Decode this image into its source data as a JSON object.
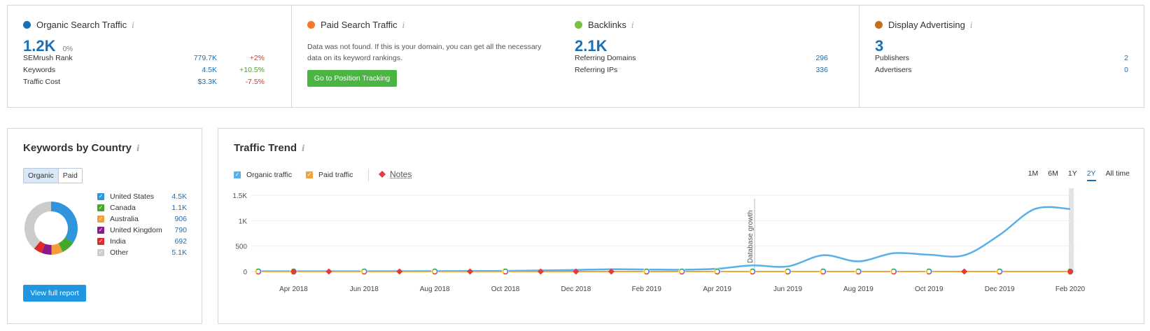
{
  "organic": {
    "title": "Organic Search Traffic",
    "value": "1.2K",
    "change": "0%",
    "rows": [
      {
        "label": "SEMrush Rank",
        "value": "779.7K",
        "change": "+2%",
        "dir": "down"
      },
      {
        "label": "Keywords",
        "value": "4.5K",
        "change": "+10.5%",
        "dir": "up"
      },
      {
        "label": "Traffic Cost",
        "value": "$3.3K",
        "change": "-7.5%",
        "dir": "down"
      }
    ]
  },
  "paid": {
    "title": "Paid Search Traffic",
    "message": "Data was not found. If this is your domain, you can get all the necessary data on its keyword rankings.",
    "button": "Go to Position Tracking"
  },
  "backlinks": {
    "title": "Backlinks",
    "value": "2.1K",
    "rows": [
      {
        "label": "Referring Domains",
        "value": "296"
      },
      {
        "label": "Referring IPs",
        "value": "336"
      }
    ]
  },
  "display": {
    "title": "Display Advertising",
    "value": "3",
    "rows": [
      {
        "label": "Publishers",
        "value": "2"
      },
      {
        "label": "Advertisers",
        "value": "0"
      }
    ]
  },
  "info_glyph": "i",
  "colors": {
    "organic_dot": "#1a6fb5",
    "paid_dot": "#f5792a",
    "backlinks_dot": "#76c043",
    "display_dot": "#c0701a",
    "organic_line": "#59b0e8",
    "paid_line": "#f1a43c",
    "notes": "#e33a3a"
  },
  "kbc": {
    "title": "Keywords by Country",
    "tabs": [
      "Organic",
      "Paid"
    ],
    "active_tab": "Organic",
    "countries": [
      {
        "name": "United States",
        "value": "4.5K",
        "share": 4500,
        "color": "#2f95dc"
      },
      {
        "name": "Canada",
        "value": "1.1K",
        "share": 1100,
        "color": "#43a82c"
      },
      {
        "name": "Australia",
        "value": "906",
        "share": 906,
        "color": "#f39c38"
      },
      {
        "name": "United Kingdom",
        "value": "790",
        "share": 790,
        "color": "#8a1a8c"
      },
      {
        "name": "India",
        "value": "692",
        "share": 692,
        "color": "#df2a2a"
      },
      {
        "name": "Other",
        "value": "5.1K",
        "share": 5100,
        "color": "#cccccc"
      }
    ],
    "button": "View full report"
  },
  "trend": {
    "title": "Traffic Trend",
    "legend": {
      "organic": "Organic traffic",
      "paid": "Paid traffic",
      "notes": "Notes"
    },
    "ranges": [
      "1M",
      "6M",
      "1Y",
      "2Y",
      "All time"
    ],
    "active_range": "2Y",
    "annotation": "Database growth"
  },
  "chart_data": {
    "type": "line",
    "y_ticks": [
      "0",
      "500",
      "1K",
      "1.5K"
    ],
    "ylim": [
      0,
      1500
    ],
    "x_ticks": [
      "Apr 2018",
      "Jun 2018",
      "Aug 2018",
      "Oct 2018",
      "Dec 2018",
      "Feb 2019",
      "Apr 2019",
      "Jun 2019",
      "Aug 2019",
      "Oct 2019",
      "Dec 2019",
      "Feb 2020"
    ],
    "annotation_date": "May 2019",
    "series": [
      {
        "name": "Organic traffic",
        "key": "organic",
        "x": [
          "Mar 2018",
          "Apr 2018",
          "May 2018",
          "Jun 2018",
          "Jul 2018",
          "Aug 2018",
          "Sep 2018",
          "Oct 2018",
          "Nov 2018",
          "Dec 2018",
          "Jan 2019",
          "Feb 2019",
          "Mar 2019",
          "Apr 2019",
          "May 2019",
          "Jun 2019",
          "Jul 2019",
          "Aug 2019",
          "Sep 2019",
          "Oct 2019",
          "Nov 2019",
          "Dec 2019",
          "Jan 2020",
          "Feb 2020"
        ],
        "values": [
          5,
          5,
          6,
          6,
          7,
          8,
          10,
          12,
          20,
          30,
          45,
          40,
          35,
          55,
          120,
          100,
          320,
          200,
          360,
          330,
          320,
          720,
          1230,
          1230
        ]
      },
      {
        "name": "Paid traffic",
        "key": "paid",
        "x": [
          "Mar 2018",
          "Feb 2020"
        ],
        "values": [
          0,
          0
        ]
      }
    ],
    "google_markers": [
      "Mar 2018",
      "Apr 2018",
      "Jun 2018",
      "Aug 2018",
      "Oct 2018",
      "Feb 2019",
      "Mar 2019",
      "Apr 2019",
      "May 2019",
      "Jun 2019",
      "Jul 2019",
      "Aug 2019",
      "Sep 2019",
      "Oct 2019",
      "Dec 2019",
      "Feb 2020"
    ],
    "note_markers": [
      "Apr 2018",
      "May 2018",
      "Jul 2018",
      "Sep 2018",
      "Nov 2018",
      "Dec 2018",
      "Jan 2019",
      "Nov 2019",
      "Feb 2020"
    ]
  }
}
